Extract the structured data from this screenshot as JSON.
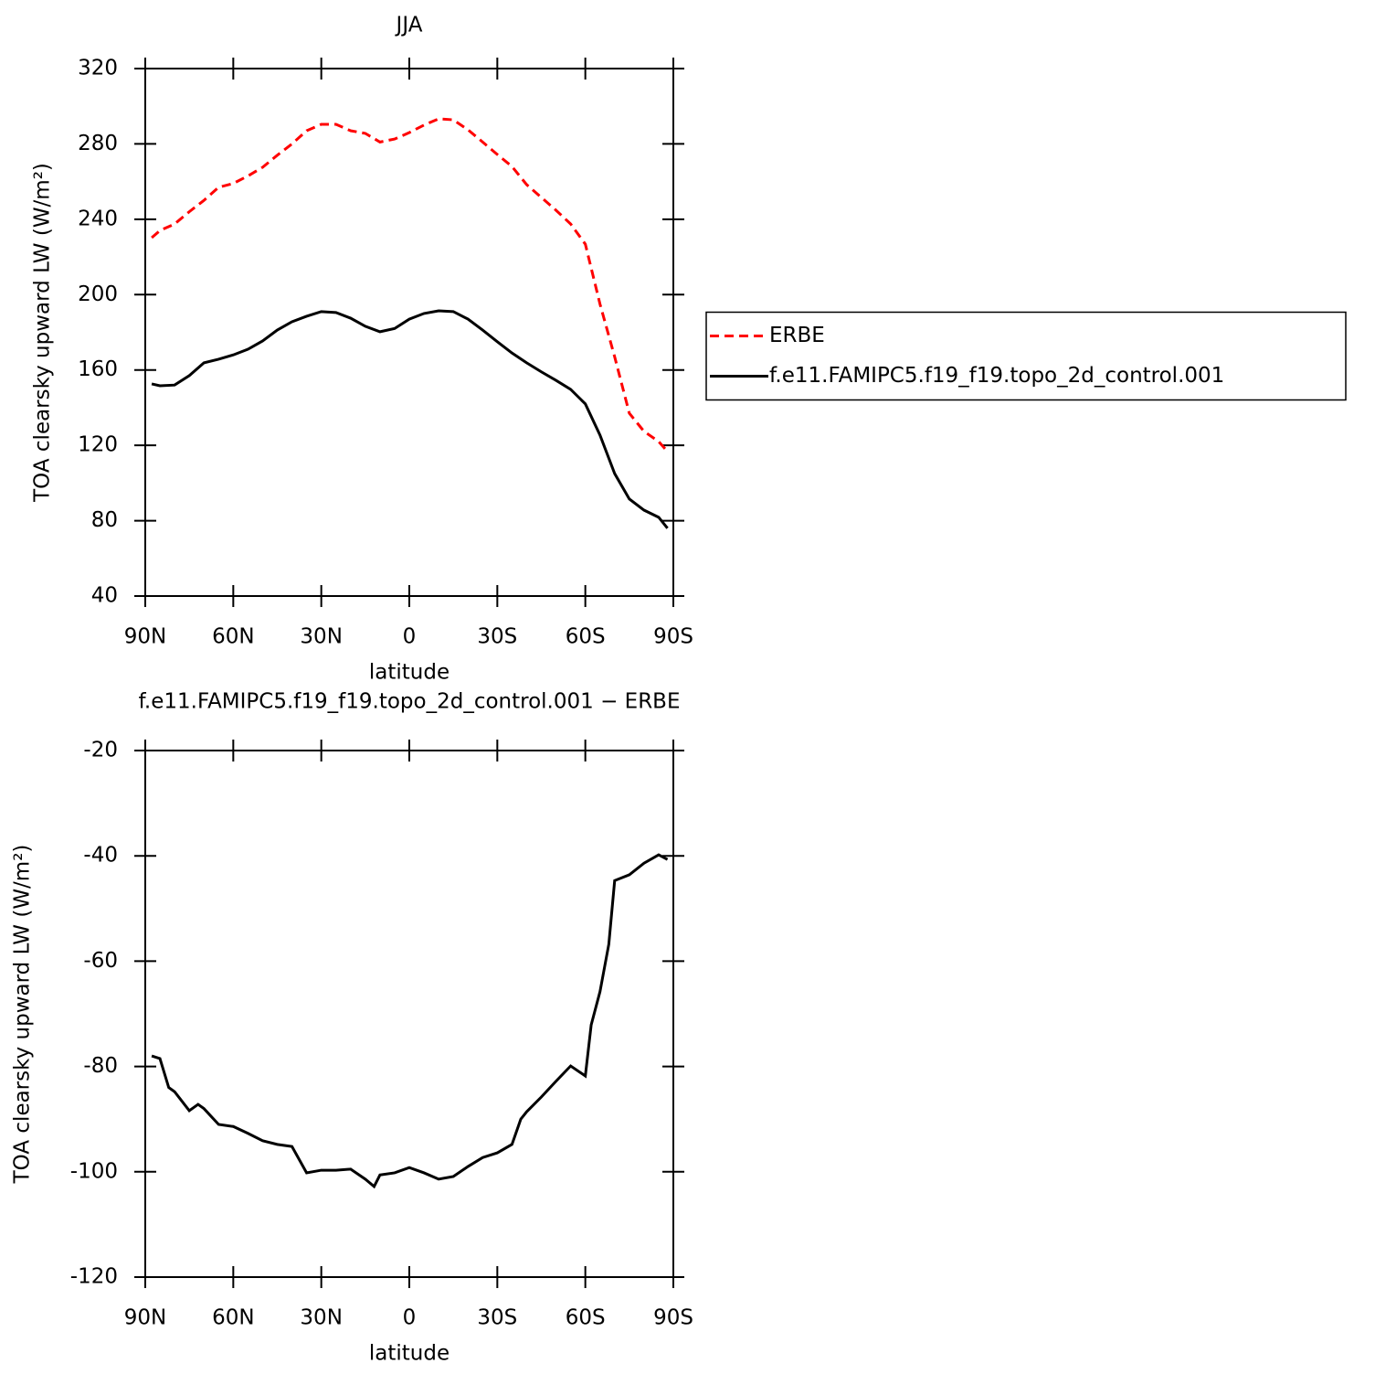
{
  "chart_data": [
    {
      "type": "line",
      "title": "JJA",
      "xlabel": "latitude",
      "ylabel": "TOA clearsky upward LW (W/m²)",
      "xlim": [
        90,
        -90
      ],
      "xticks": [
        {
          "value": 90,
          "label": "90N"
        },
        {
          "value": 60,
          "label": "60N"
        },
        {
          "value": 30,
          "label": "30N"
        },
        0,
        {
          "value": -30,
          "label": "30S"
        },
        {
          "value": -60,
          "label": "60S"
        },
        {
          "value": -90,
          "label": "90S"
        }
      ],
      "ylim": [
        40,
        320
      ],
      "yticks": [
        40,
        80,
        120,
        160,
        200,
        240,
        280,
        320
      ],
      "legend": "outside-right",
      "x": [
        87.8,
        85,
        80,
        75,
        70,
        65,
        60,
        55,
        50,
        45,
        40,
        35,
        30,
        25,
        20,
        15,
        10,
        5,
        0,
        -5,
        -10,
        -15,
        -20,
        -25,
        -30,
        -35,
        -40,
        -45,
        -50,
        -55,
        -60,
        -65,
        -70,
        -75,
        -80,
        -85,
        -88
      ],
      "series": [
        {
          "name": "ERBE",
          "color": "#ff0000",
          "linestyle": "dashed",
          "values": [
            230.2,
            234,
            237.5,
            244,
            250,
            257,
            259,
            263,
            267.6,
            274,
            280,
            287,
            290.4,
            290.4,
            287,
            285.6,
            281,
            282.6,
            286,
            290,
            293.3,
            292.8,
            287.5,
            281,
            274.4,
            268,
            258.4,
            251.6,
            244.8,
            237.5,
            226.8,
            195,
            167,
            137,
            127.4,
            122,
            116.7
          ]
        },
        {
          "name": "f.e11.FAMIPC5.f19_f19.topo_2d_control.001",
          "color": "#000000",
          "linestyle": "solid",
          "values": [
            152.6,
            151.6,
            152,
            157,
            163.8,
            165.7,
            168,
            171,
            175.4,
            181.2,
            185.6,
            188.5,
            191,
            190.5,
            187.5,
            183.2,
            180.3,
            182,
            187,
            190,
            191.4,
            191,
            187,
            181.2,
            175,
            169,
            163.8,
            159,
            154.5,
            149.7,
            142,
            125.4,
            105,
            91.5,
            85.6,
            81.8,
            76
          ]
        }
      ]
    },
    {
      "type": "line",
      "title": "f.e11.FAMIPC5.f19_f19.topo_2d_control.001 − ERBE",
      "xlabel": "latitude",
      "ylabel": "TOA clearsky upward LW (W/m²)",
      "xlim": [
        90,
        -90
      ],
      "xticks": [
        {
          "value": 90,
          "label": "90N"
        },
        {
          "value": 60,
          "label": "60N"
        },
        {
          "value": 30,
          "label": "30N"
        },
        0,
        {
          "value": -30,
          "label": "30S"
        },
        {
          "value": -60,
          "label": "60S"
        },
        {
          "value": -90,
          "label": "90S"
        }
      ],
      "ylim": [
        -120,
        -20
      ],
      "yticks": [
        -120,
        -100,
        -80,
        -60,
        -40,
        -20
      ],
      "x": [
        87.8,
        85,
        82,
        80,
        75,
        72,
        70,
        65,
        60,
        55,
        50,
        45,
        40,
        35,
        30,
        25,
        20,
        15,
        12,
        10,
        5,
        0,
        -5,
        -10,
        -15,
        -20,
        -25,
        -30,
        -35,
        -38,
        -40,
        -45,
        -50,
        -55,
        -60,
        -62,
        -65,
        -68,
        -70,
        -75,
        -80,
        -85,
        -88
      ],
      "series": [
        {
          "color": "#000000",
          "linestyle": "solid",
          "values": [
            -78,
            -78.5,
            -84,
            -84.8,
            -88.4,
            -87.2,
            -88,
            -91,
            -91.4,
            -92.7,
            -94.1,
            -94.8,
            -95.2,
            -100.2,
            -99.7,
            -99.7,
            -99.5,
            -101.4,
            -102.8,
            -100.6,
            -100.2,
            -99.2,
            -100.2,
            -101.4,
            -100.9,
            -99,
            -97.3,
            -96.4,
            -94.8,
            -90,
            -88.6,
            -85.8,
            -82.8,
            -79.9,
            -81.8,
            -72.1,
            -65.8,
            -56.8,
            -44.7,
            -43.6,
            -41.4,
            -39.8,
            -40.7
          ]
        }
      ]
    }
  ]
}
